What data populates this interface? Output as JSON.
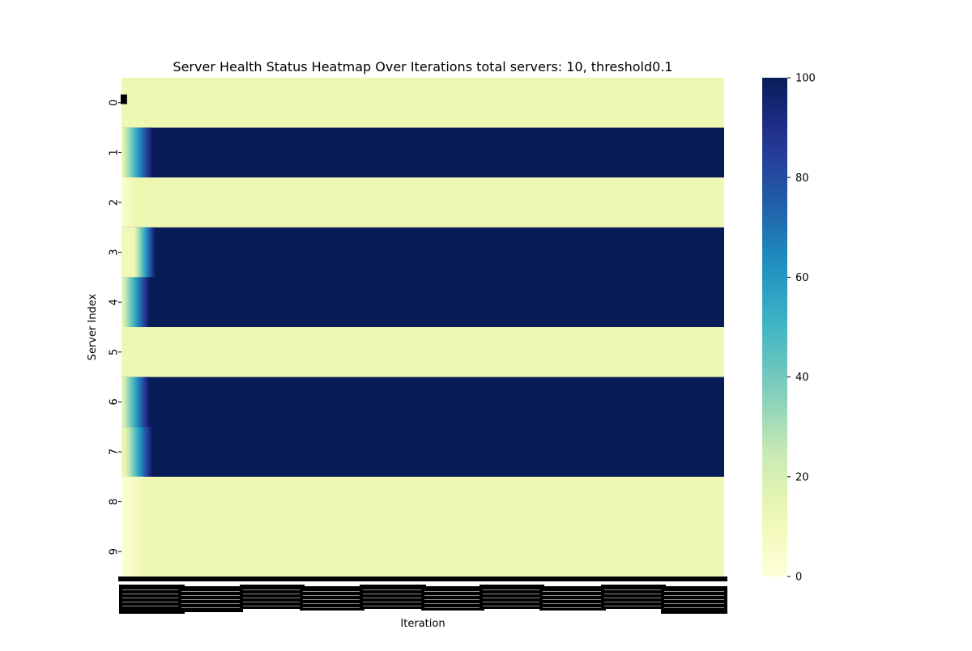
{
  "chart_data": {
    "type": "heatmap",
    "title": "Server Health Status Heatmap Over Iterations total servers: 10, threshold0.1",
    "xlabel": "Iteration",
    "ylabel": "Server Index",
    "rows": [
      "0",
      "1",
      "2",
      "3",
      "4",
      "5",
      "6",
      "7",
      "8",
      "9"
    ],
    "x_tick_labels_note": "dense, overlapping iteration tick labels rendered as a solid black band",
    "colorbar": {
      "colormap": "YlGnBu",
      "min": 0,
      "max": 100,
      "ticks": [
        0,
        20,
        40,
        60,
        80,
        100
      ]
    },
    "series": [
      {
        "row": "0",
        "transition": {
          "start": 0.0,
          "end": 0.0,
          "from": 12,
          "to": 12
        }
      },
      {
        "row": "1",
        "transition": {
          "start": 0.0,
          "end": 0.05,
          "from": 12,
          "to": 100
        }
      },
      {
        "row": "2",
        "transition": {
          "start": 0.0,
          "end": 0.02,
          "from": 3,
          "to": 12
        }
      },
      {
        "row": "3",
        "transition": {
          "start": 0.02,
          "end": 0.055,
          "from": 10,
          "to": 100
        }
      },
      {
        "row": "4",
        "transition": {
          "start": 0.0,
          "end": 0.045,
          "from": 12,
          "to": 100
        }
      },
      {
        "row": "5",
        "transition": {
          "start": 0.0,
          "end": 0.0,
          "from": 12,
          "to": 12
        }
      },
      {
        "row": "6",
        "transition": {
          "start": 0.0,
          "end": 0.045,
          "from": 12,
          "to": 100
        }
      },
      {
        "row": "7",
        "transition": {
          "start": 0.005,
          "end": 0.05,
          "from": 12,
          "to": 100
        }
      },
      {
        "row": "8",
        "transition": {
          "start": 0.0,
          "end": 0.035,
          "from": 2,
          "to": 12
        }
      },
      {
        "row": "9",
        "transition": {
          "start": 0.0,
          "end": 0.04,
          "from": 2,
          "to": 12
        }
      }
    ]
  }
}
